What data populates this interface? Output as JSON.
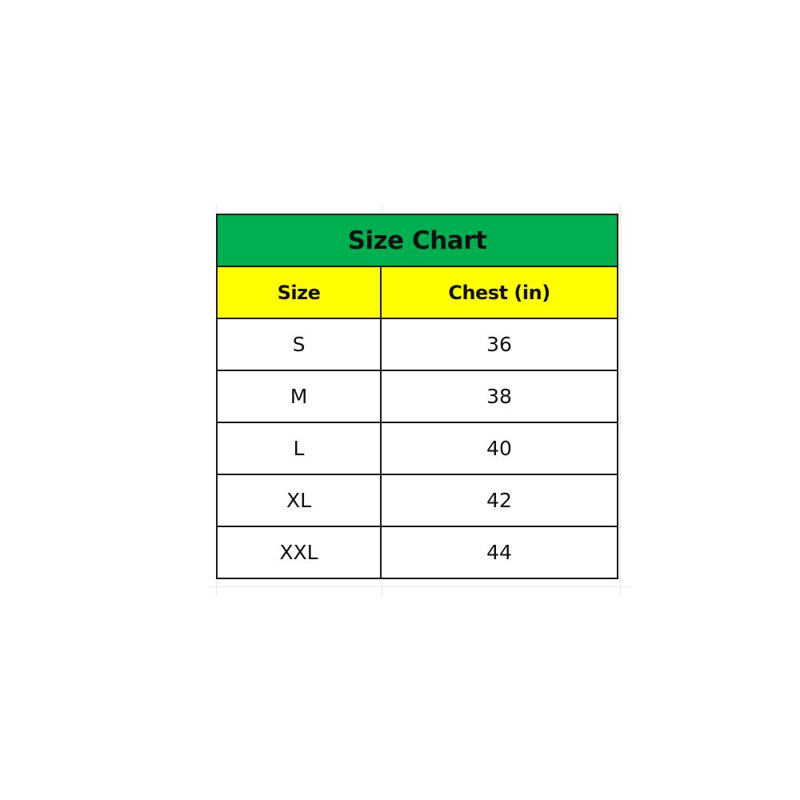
{
  "table": {
    "title": "Size Chart",
    "headers": [
      "Size",
      "Chest (in)"
    ],
    "rows": [
      [
        "S",
        "36"
      ],
      [
        "M",
        "38"
      ],
      [
        "L",
        "40"
      ],
      [
        "XL",
        "42"
      ],
      [
        "XXL",
        "44"
      ]
    ]
  },
  "colors": {
    "title_bg": "#00B050",
    "header_bg": "#FFFF00"
  }
}
